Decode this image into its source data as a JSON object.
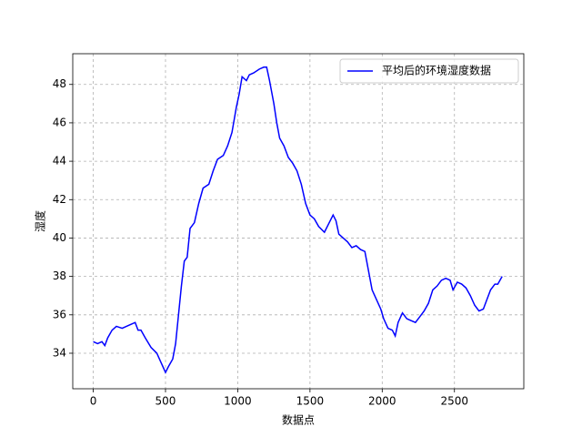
{
  "chart_data": {
    "type": "line",
    "xlabel": "数据点",
    "ylabel": "湿度",
    "x": [
      0,
      30,
      60,
      80,
      100,
      130,
      160,
      200,
      230,
      260,
      290,
      310,
      330,
      360,
      400,
      440,
      470,
      500,
      520,
      550,
      570,
      590,
      610,
      630,
      650,
      670,
      700,
      730,
      760,
      800,
      830,
      860,
      900,
      930,
      960,
      990,
      1010,
      1030,
      1060,
      1080,
      1110,
      1150,
      1180,
      1200,
      1220,
      1250,
      1270,
      1290,
      1320,
      1350,
      1380,
      1410,
      1440,
      1470,
      1500,
      1530,
      1560,
      1600,
      1640,
      1660,
      1680,
      1700,
      1730,
      1760,
      1790,
      1820,
      1850,
      1880,
      1900,
      1930,
      1960,
      1990,
      2010,
      2040,
      2070,
      2090,
      2110,
      2140,
      2170,
      2200,
      2230,
      2260,
      2290,
      2320,
      2350,
      2380,
      2410,
      2440,
      2470,
      2490,
      2520,
      2550,
      2580,
      2610,
      2640,
      2670,
      2700,
      2720,
      2750,
      2780,
      2800,
      2830
    ],
    "series": [
      {
        "name": "平均后的环境湿度数据",
        "color": "#0000ff",
        "values": [
          34.6,
          34.5,
          34.6,
          34.4,
          34.8,
          35.2,
          35.4,
          35.3,
          35.4,
          35.5,
          35.6,
          35.2,
          35.2,
          34.8,
          34.3,
          34.0,
          33.5,
          33.0,
          33.3,
          33.7,
          34.5,
          36.0,
          37.5,
          38.8,
          39.0,
          40.5,
          40.8,
          41.8,
          42.6,
          42.8,
          43.5,
          44.1,
          44.3,
          44.8,
          45.5,
          46.8,
          47.5,
          48.4,
          48.2,
          48.5,
          48.6,
          48.8,
          48.9,
          48.9,
          48.2,
          47.0,
          46.0,
          45.2,
          44.8,
          44.2,
          43.9,
          43.5,
          42.8,
          41.8,
          41.2,
          41.0,
          40.6,
          40.3,
          40.9,
          41.2,
          40.9,
          40.2,
          40.0,
          39.8,
          39.5,
          39.6,
          39.4,
          39.3,
          38.5,
          37.3,
          36.8,
          36.3,
          35.8,
          35.3,
          35.2,
          34.9,
          35.6,
          36.1,
          35.8,
          35.7,
          35.6,
          35.9,
          36.2,
          36.6,
          37.3,
          37.5,
          37.8,
          37.9,
          37.8,
          37.3,
          37.7,
          37.6,
          37.4,
          37.0,
          36.5,
          36.2,
          36.3,
          36.7,
          37.3,
          37.6,
          37.6,
          38.0
        ]
      }
    ],
    "xlim": [
      -142,
      2980
    ],
    "ylim": [
      32.15,
      49.6
    ],
    "xticks": [
      0,
      500,
      1000,
      1500,
      2000,
      2500
    ],
    "yticks": [
      34,
      36,
      38,
      40,
      42,
      44,
      46,
      48
    ],
    "grid": true,
    "legend": "upper right"
  }
}
